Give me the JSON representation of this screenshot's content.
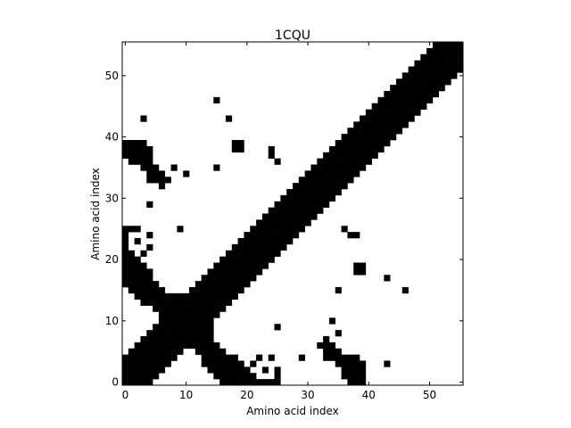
{
  "chart_data": {
    "type": "heatmap",
    "title": "1CQU",
    "xlabel": "Amino acid index",
    "ylabel": "Amino acid index",
    "xlim": [
      -0.5,
      55.5
    ],
    "ylim": [
      -0.5,
      55.5
    ],
    "xticks": [
      0,
      10,
      20,
      30,
      40,
      50
    ],
    "yticks": [
      0,
      10,
      20,
      30,
      40,
      50
    ],
    "grid": false,
    "size": 56,
    "band_width": 4,
    "contact_color": "#000000",
    "background_color": "#ffffff",
    "segments": [
      {
        "from": [
          0,
          17
        ],
        "to": [
          13,
          8
        ],
        "half_width": 1.6
      },
      {
        "from": [
          7,
          10
        ],
        "to": [
          20,
          1
        ],
        "half_width": 1.4
      },
      {
        "from": [
          19,
          0
        ],
        "to": [
          25,
          0
        ],
        "half_width": 0.6
      },
      {
        "from": [
          33,
          6
        ],
        "to": [
          38,
          1
        ],
        "half_width": 1.2
      },
      {
        "from": [
          0,
          38
        ],
        "to": [
          6,
          33
        ],
        "half_width": 1.0
      },
      {
        "from": [
          2,
          39
        ],
        "to": [
          4,
          37
        ],
        "half_width": 0.8
      }
    ],
    "points": [
      [
        15,
        46
      ],
      [
        17,
        43
      ],
      [
        3,
        43
      ],
      [
        18,
        38
      ],
      [
        19,
        38
      ],
      [
        15,
        35
      ],
      [
        8,
        35
      ],
      [
        4,
        29
      ],
      [
        1,
        25
      ],
      [
        2,
        23
      ],
      [
        39,
        19
      ],
      [
        39,
        18
      ],
      [
        43,
        17
      ],
      [
        35,
        15
      ],
      [
        46,
        15
      ],
      [
        29,
        4
      ],
      [
        43,
        3
      ],
      [
        34,
        10
      ],
      [
        25,
        9
      ],
      [
        24,
        4
      ],
      [
        25,
        2
      ],
      [
        33,
        4
      ],
      [
        37,
        24
      ],
      [
        36,
        25
      ],
      [
        38,
        24
      ],
      [
        3,
        21
      ],
      [
        4,
        22
      ]
    ]
  }
}
